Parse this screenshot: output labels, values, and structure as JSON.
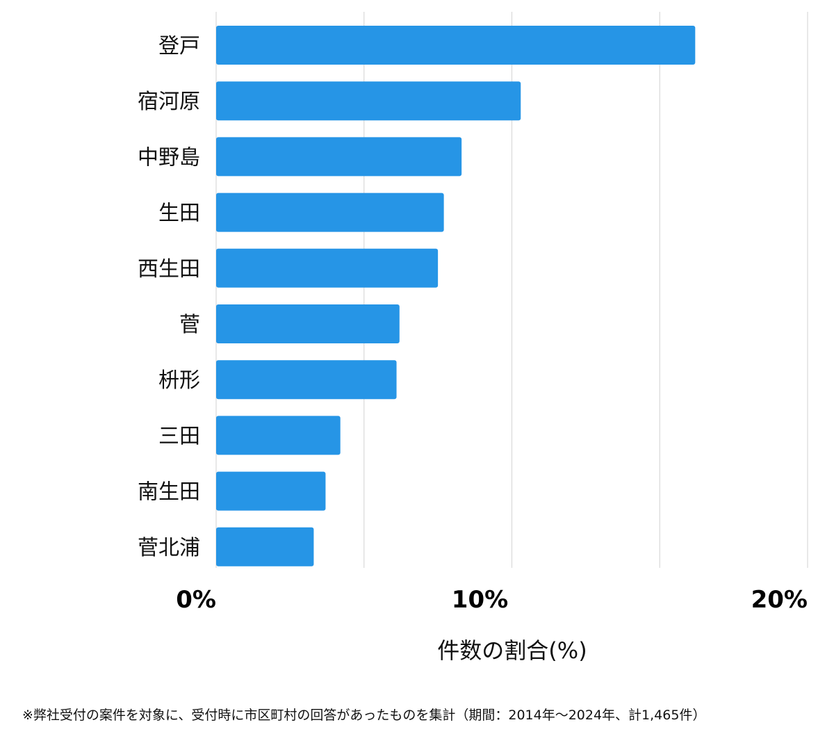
{
  "chart_data": {
    "type": "bar",
    "orientation": "horizontal",
    "categories": [
      "登戸",
      "宿河原",
      "中野島",
      "生田",
      "西生田",
      "菅",
      "枡形",
      "三田",
      "南生田",
      "菅北浦"
    ],
    "values": [
      16.2,
      10.3,
      8.3,
      7.7,
      7.5,
      6.2,
      6.1,
      4.2,
      3.7,
      3.3
    ],
    "xlim": [
      0,
      20
    ],
    "ticks": [
      {
        "value": 0,
        "label": "0%"
      },
      {
        "value": 10,
        "label": "10%"
      },
      {
        "value": 20,
        "label": "20%"
      }
    ],
    "gridlines": [
      0,
      5,
      10,
      15,
      20
    ],
    "xlabel": "件数の割合(%)",
    "grid": true,
    "legend": "none",
    "bar_color": "#2695e6",
    "grid_color": "#d9d9d9"
  },
  "footnote": "※弊社受付の案件を対象に、受付時に市区町村の回答があったものを集計（期間：2014年～2024年、計1,465件）"
}
